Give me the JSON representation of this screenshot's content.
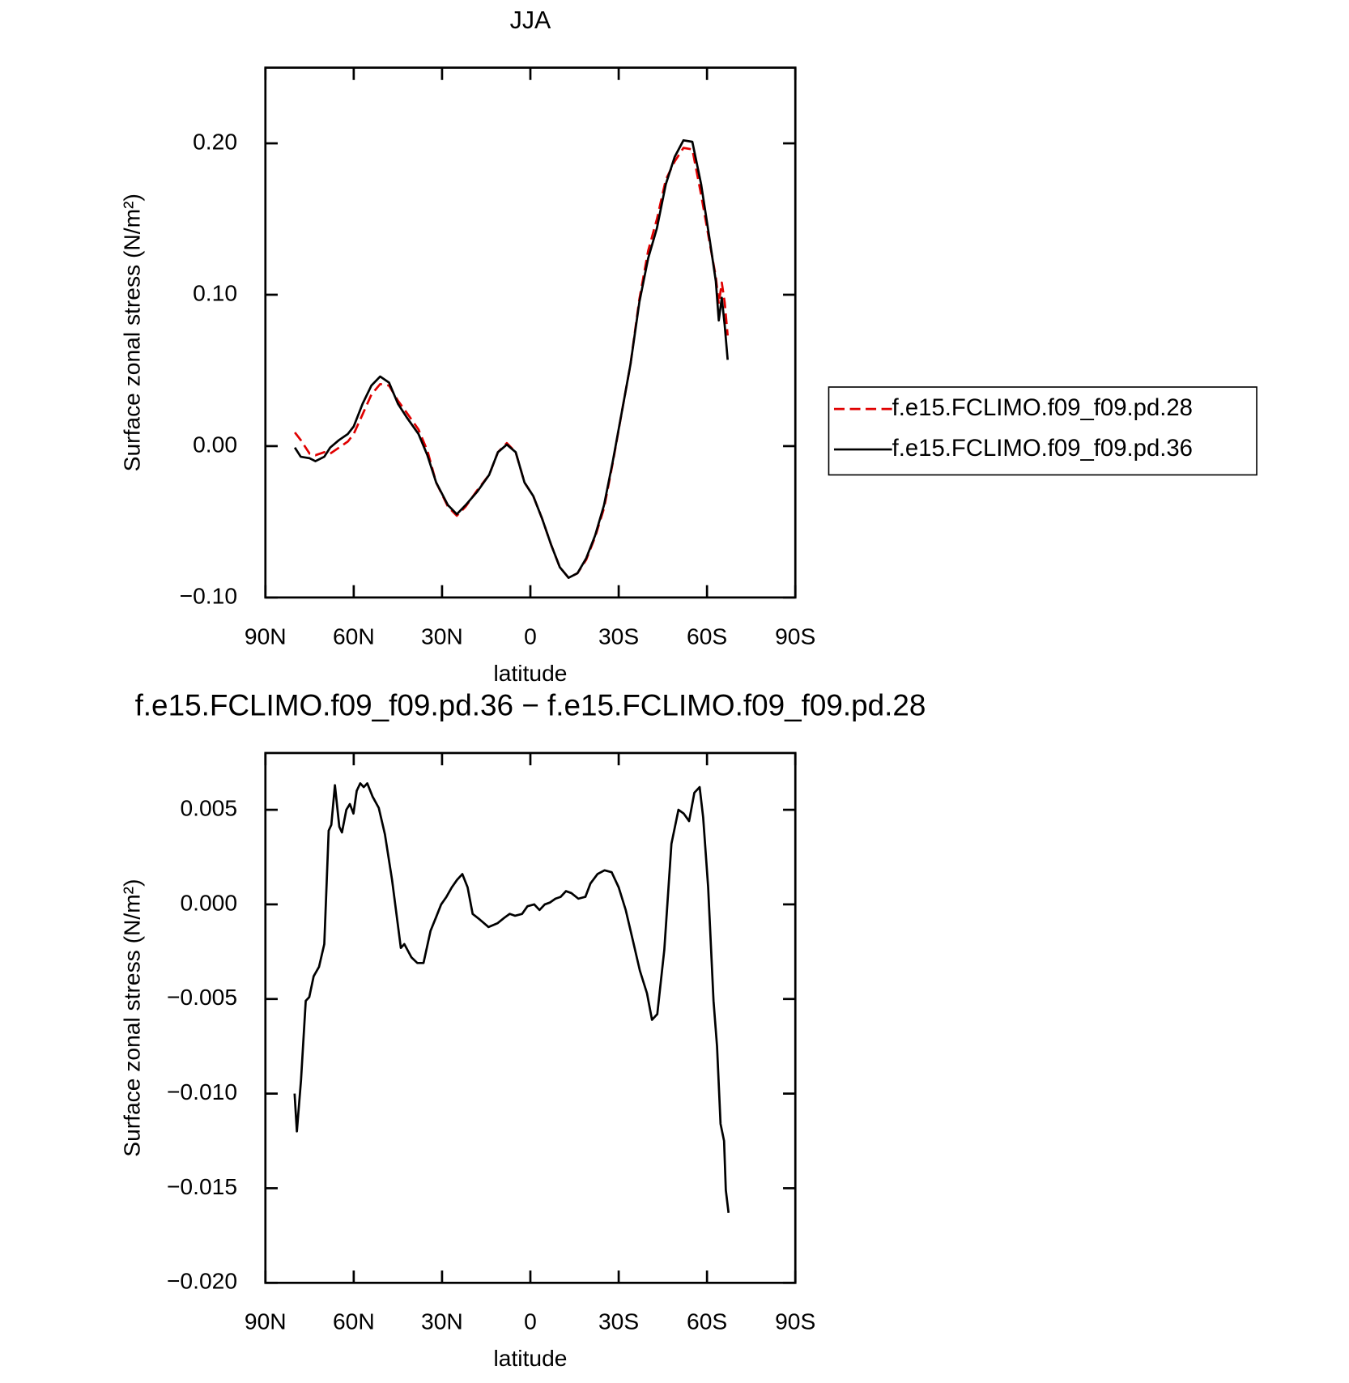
{
  "chart_data": [
    {
      "type": "line",
      "title": "JJA",
      "xlabel": "latitude",
      "ylabel": "Surface zonal stress (N/m²)",
      "x": [
        80,
        78,
        75,
        73,
        70,
        68,
        65,
        62,
        60,
        57,
        54,
        51,
        48,
        45,
        42,
        38,
        35,
        32,
        28,
        25,
        22,
        18,
        14,
        11,
        8,
        5,
        2,
        -1,
        -4,
        -7,
        -10,
        -13,
        -16,
        -19,
        -22,
        -25,
        -28,
        -31,
        -34,
        -37,
        -40,
        -43,
        -46,
        -49,
        -52,
        -55,
        -58,
        -61,
        -63,
        -64,
        -65,
        -66,
        -67
      ],
      "series": [
        {
          "name": "f.e15.FCLIMO.f09_f09.pd.28",
          "color": "#e00000",
          "linestyle": "dashed",
          "values": [
            0.009,
            0.004,
            -0.005,
            -0.006,
            -0.004,
            -0.005,
            -0.001,
            0.003,
            0.008,
            0.021,
            0.034,
            0.041,
            0.04,
            0.03,
            0.022,
            0.011,
            -0.003,
            -0.024,
            -0.04,
            -0.046,
            -0.04,
            -0.029,
            -0.019,
            -0.004,
            0.002,
            -0.004,
            -0.024,
            -0.033,
            -0.048,
            -0.065,
            -0.08,
            -0.087,
            -0.084,
            -0.075,
            -0.06,
            -0.041,
            -0.011,
            0.022,
            0.054,
            0.097,
            0.129,
            0.15,
            0.176,
            0.188,
            0.197,
            0.196,
            0.166,
            0.133,
            0.112,
            0.094,
            0.108,
            0.095,
            0.073
          ]
        },
        {
          "name": "f.e15.FCLIMO.f09_f09.pd.36",
          "color": "#000000",
          "linestyle": "solid",
          "values": [
            -0.001,
            -0.007,
            -0.008,
            -0.01,
            -0.007,
            -0.001,
            0.004,
            0.008,
            0.013,
            0.028,
            0.04,
            0.046,
            0.042,
            0.028,
            0.019,
            0.008,
            -0.006,
            -0.024,
            -0.039,
            -0.045,
            -0.039,
            -0.03,
            -0.019,
            -0.004,
            0.001,
            -0.004,
            -0.024,
            -0.033,
            -0.048,
            -0.065,
            -0.08,
            -0.087,
            -0.084,
            -0.074,
            -0.059,
            -0.039,
            -0.01,
            0.022,
            0.054,
            0.095,
            0.124,
            0.144,
            0.173,
            0.191,
            0.202,
            0.201,
            0.173,
            0.135,
            0.109,
            0.083,
            0.098,
            0.08,
            0.057
          ]
        }
      ],
      "xlim": [
        90,
        -90
      ],
      "xticks": [
        {
          "value": 90,
          "label": "90N"
        },
        {
          "value": 60,
          "label": "60N"
        },
        {
          "value": 30,
          "label": "30N"
        },
        0,
        {
          "value": -30,
          "label": "30S"
        },
        {
          "value": -60,
          "label": "60S"
        },
        {
          "value": -90,
          "label": "90S"
        }
      ],
      "ylim": [
        -0.1,
        0.25
      ],
      "yticks": [
        {
          "value": -0.1,
          "label": "−0.10"
        },
        {
          "value": 0,
          "label": "0.00"
        },
        {
          "value": 0.1,
          "label": "0.10"
        },
        {
          "value": 0.2,
          "label": "0.20"
        }
      ],
      "legend": "right"
    },
    {
      "type": "line",
      "title": "f.e15.FCLIMO.f09_f09.pd.36 − f.e15.FCLIMO.f09_f09.pd.28",
      "xlabel": "latitude",
      "ylabel": "Surface zonal stress (N/m²)",
      "x": [
        80.1,
        79.3,
        77.9,
        76.3,
        75.1,
        73.6,
        71.8,
        70.0,
        68.5,
        67.6,
        66.4,
        64.9,
        64.0,
        62.5,
        61.3,
        60.1,
        59.0,
        57.8,
        56.6,
        55.4,
        53.6,
        51.5,
        49.4,
        47.0,
        44.0,
        42.8,
        40.4,
        38.4,
        36.3,
        33.9,
        32.1,
        30.3,
        28.5,
        26.7,
        24.9,
        23.1,
        21.3,
        19.6,
        17.2,
        14.2,
        11.2,
        8.8,
        7.0,
        5.2,
        2.8,
        1.0,
        -1.3,
        -3.1,
        -4.9,
        -6.7,
        -8.5,
        -10.3,
        -12.1,
        -13.9,
        -16.3,
        -18.7,
        -20.4,
        -22.8,
        -25.2,
        -27.6,
        -30.0,
        -32.4,
        -34.8,
        -37.2,
        -39.6,
        -41.3,
        -43.1,
        -45.5,
        -47.9,
        -50.3,
        -52.1,
        -53.9,
        -55.7,
        -57.5,
        -58.7,
        -60.4,
        -62.2,
        -63.4,
        -64.6,
        -65.8,
        -66.4,
        -67.3
      ],
      "color": "#000000",
      "values": [
        -0.01,
        -0.012,
        -0.0093,
        -0.0051,
        -0.0049,
        -0.0038,
        -0.0033,
        -0.0021,
        0.0039,
        0.0042,
        0.0063,
        0.0041,
        0.0038,
        0.005,
        0.0053,
        0.0048,
        0.006,
        0.0064,
        0.0062,
        0.0064,
        0.0057,
        0.0051,
        0.0037,
        0.0013,
        -0.0023,
        -0.0021,
        -0.0028,
        -0.0031,
        -0.0031,
        -0.0014,
        -0.0007,
        0.0,
        0.0004,
        0.0009,
        0.0013,
        0.0016,
        0.0009,
        -0.0005,
        -0.0008,
        -0.0012,
        -0.001,
        -0.0007,
        -0.0005,
        -0.0006,
        -0.0005,
        -0.0001,
        0.0,
        -0.0003,
        0.0,
        0.0001,
        0.0003,
        0.0004,
        0.0007,
        0.0006,
        0.0003,
        0.0004,
        0.0011,
        0.0016,
        0.0018,
        0.0017,
        0.0009,
        -0.0003,
        -0.0019,
        -0.0035,
        -0.0047,
        -0.0061,
        -0.0058,
        -0.0024,
        0.0032,
        0.005,
        0.0048,
        0.0044,
        0.0059,
        0.0062,
        0.0046,
        0.0009,
        -0.0051,
        -0.0075,
        -0.0116,
        -0.0125,
        -0.0151,
        -0.0163
      ],
      "xlim": [
        90,
        -90
      ],
      "xticks": [
        {
          "value": 90,
          "label": "90N"
        },
        {
          "value": 60,
          "label": "60N"
        },
        {
          "value": 30,
          "label": "30N"
        },
        0,
        {
          "value": -30,
          "label": "30S"
        },
        {
          "value": -60,
          "label": "60S"
        },
        {
          "value": -90,
          "label": "90S"
        }
      ],
      "ylim": [
        -0.02,
        0.008
      ],
      "yticks": [
        {
          "value": -0.02,
          "label": "−0.020"
        },
        {
          "value": -0.015,
          "label": "−0.015"
        },
        {
          "value": -0.01,
          "label": "−0.010"
        },
        {
          "value": -0.005,
          "label": "−0.005"
        },
        {
          "value": 0,
          "label": "0.000"
        },
        {
          "value": 0.005,
          "label": "0.005"
        }
      ]
    }
  ]
}
